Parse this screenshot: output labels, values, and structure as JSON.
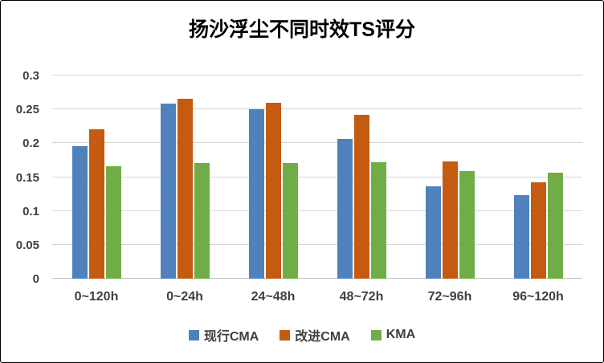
{
  "title": "扬沙浮尘不同时效TS评分",
  "chart_data": {
    "type": "bar",
    "title": "扬沙浮尘不同时效TS评分",
    "categories": [
      "0~120h",
      "0~24h",
      "24~48h",
      "48~72h",
      "72~96h",
      "96~120h"
    ],
    "series": [
      {
        "name": "现行CMA",
        "color": "#4F81BD",
        "values": [
          0.196,
          0.259,
          0.25,
          0.206,
          0.136,
          0.123
        ]
      },
      {
        "name": "改进CMA",
        "color": "#C55A11",
        "values": [
          0.221,
          0.266,
          0.26,
          0.242,
          0.173,
          0.142
        ]
      },
      {
        "name": "KMA",
        "color": "#70AD47",
        "values": [
          0.166,
          0.171,
          0.171,
          0.172,
          0.159,
          0.157
        ]
      }
    ],
    "xlabel": "",
    "ylabel": "",
    "ylim": [
      0,
      0.3
    ],
    "yticks": [
      "0",
      "0.05",
      "0.1",
      "0.15",
      "0.2",
      "0.25",
      "0.3"
    ],
    "grid": true,
    "legend_position": "bottom"
  }
}
